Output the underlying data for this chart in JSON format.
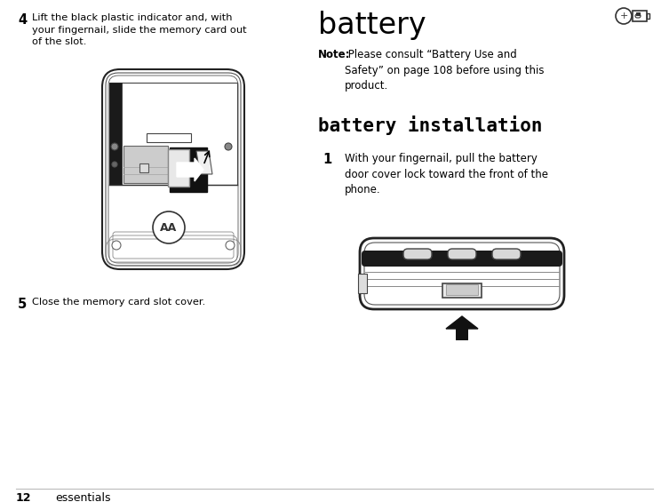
{
  "background_color": "#ffffff",
  "page_number": "12",
  "footer_text": "essentials",
  "left_col": {
    "step4_num": "4",
    "step4_text": "Lift the black plastic indicator and, with\nyour fingernail, slide the memory card out\nof the slot.",
    "step5_num": "5",
    "step5_text": "Close the memory card slot cover."
  },
  "right_col": {
    "section_title": "battery",
    "note_bold": "Note:",
    "note_text": " Please consult “Battery Use and Safety” on page 108 before using this product.",
    "subsection_title": "battery installation",
    "step1_num": "1",
    "step1_text": "With your fingernail, pull the battery\ndoor cover lock toward the front of the\nphone."
  }
}
